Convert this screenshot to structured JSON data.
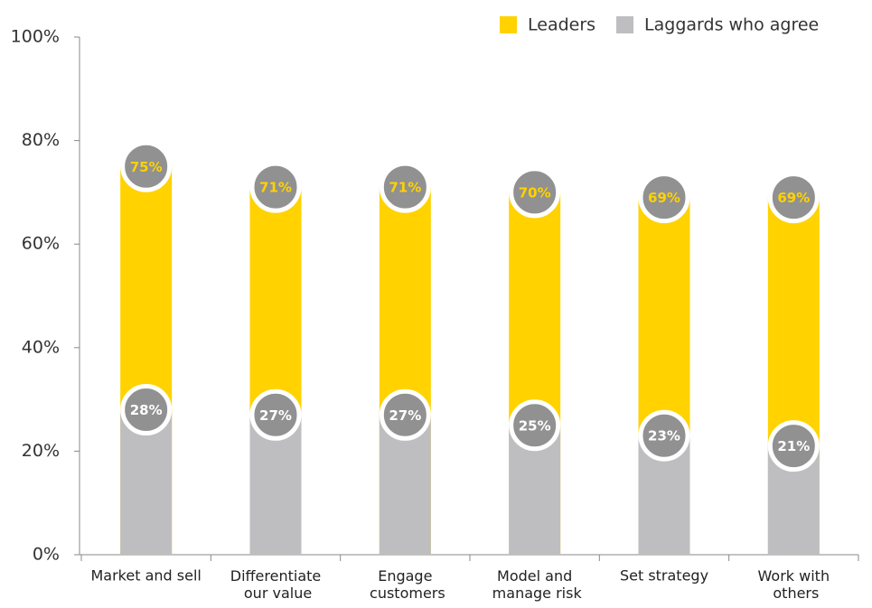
{
  "chart_data": {
    "type": "bar",
    "categories": [
      "Market and sell",
      "Differentiate our value",
      "Engage customers",
      "Model and manage risk",
      "Set strategy",
      "Work with others"
    ],
    "series": [
      {
        "name": "Leaders",
        "color": "#ffd200",
        "values": [
          75,
          71,
          71,
          70,
          69,
          69
        ],
        "value_labels": [
          "75%",
          "71%",
          "71%",
          "70%",
          "69%",
          "69%"
        ]
      },
      {
        "name": "Laggards who agree",
        "color": "#bebec0",
        "values": [
          28,
          27,
          27,
          25,
          23,
          21
        ],
        "value_labels": [
          "28%",
          "27%",
          "27%",
          "25%",
          "23%",
          "21%"
        ]
      }
    ],
    "ylim": [
      0,
      100
    ],
    "yticks": [
      {
        "value": 0,
        "label": "0%"
      },
      {
        "value": 20,
        "label": "20%"
      },
      {
        "value": 40,
        "label": "40%"
      },
      {
        "value": 60,
        "label": "60%"
      },
      {
        "value": 80,
        "label": "80%"
      },
      {
        "value": 100,
        "label": "100%"
      }
    ],
    "legend": "top-right"
  }
}
